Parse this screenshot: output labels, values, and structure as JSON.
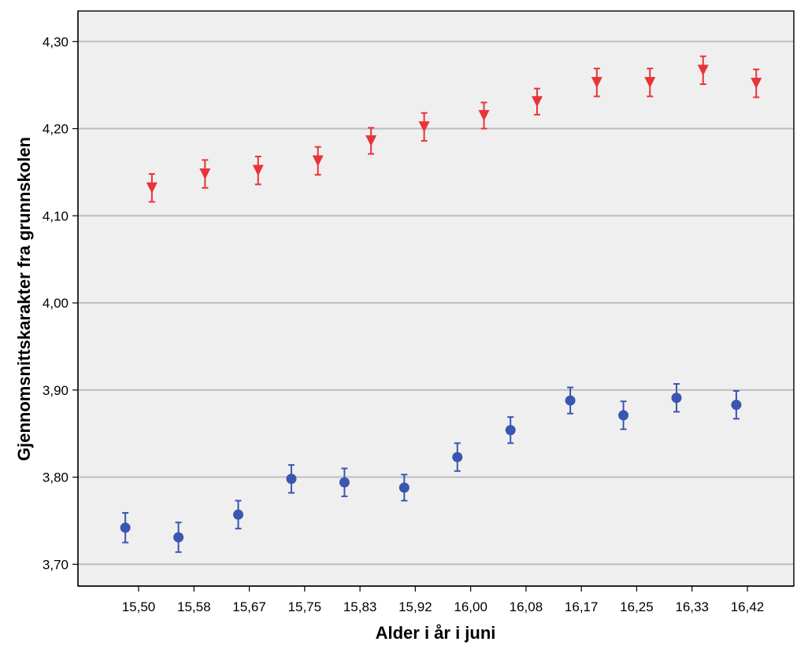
{
  "chart_data": {
    "type": "scatter",
    "xlabel": "Alder i år i juni",
    "ylabel": "Gjennomsnittskarakter fra grunnskolen",
    "ylim": [
      3.675,
      4.335
    ],
    "x_tick_labels": [
      "15,50",
      "15,58",
      "15,67",
      "15,75",
      "15,83",
      "15,92",
      "16,00",
      "16,08",
      "16,17",
      "16,25",
      "16,33",
      "16,42"
    ],
    "y_ticks": [
      3.7,
      3.8,
      3.9,
      4.0,
      4.1,
      4.2,
      4.3
    ],
    "y_tick_labels": [
      "3,70",
      "3,80",
      "3,90",
      "4,00",
      "4,10",
      "4,20",
      "4,30"
    ],
    "grid": "horizontal",
    "series": [
      {
        "marker": "triangle-down",
        "color": "#e8333a",
        "x": [
          15.52,
          15.6,
          15.68,
          15.77,
          15.85,
          15.93,
          16.02,
          16.1,
          16.19,
          16.27,
          16.35,
          16.43
        ],
        "y": [
          4.132,
          4.148,
          4.152,
          4.163,
          4.186,
          4.202,
          4.215,
          4.231,
          4.253,
          4.253,
          4.267,
          4.252
        ],
        "err": [
          0.016,
          0.016,
          0.016,
          0.016,
          0.015,
          0.016,
          0.015,
          0.015,
          0.016,
          0.016,
          0.016,
          0.016
        ]
      },
      {
        "marker": "circle",
        "color": "#3a56b0",
        "x": [
          15.48,
          15.56,
          15.65,
          15.73,
          15.81,
          15.9,
          15.98,
          16.06,
          16.15,
          16.23,
          16.31,
          16.4
        ],
        "y": [
          3.742,
          3.731,
          3.757,
          3.798,
          3.794,
          3.788,
          3.823,
          3.854,
          3.888,
          3.871,
          3.891,
          3.883
        ],
        "err": [
          0.017,
          0.017,
          0.016,
          0.016,
          0.016,
          0.015,
          0.016,
          0.015,
          0.015,
          0.016,
          0.016,
          0.016
        ]
      }
    ]
  }
}
